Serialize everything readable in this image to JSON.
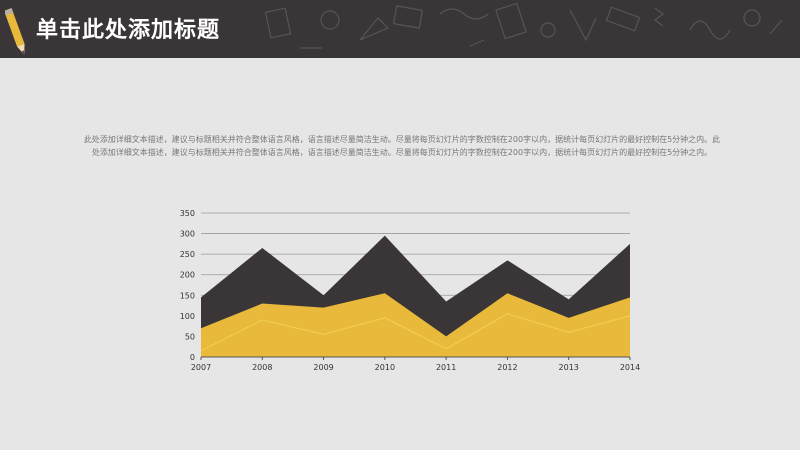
{
  "slide": {
    "title": "单击此处添加标题",
    "paragraph": "此处添加详细文本描述，建议与标题相关并符合整体语言风格，语言描述尽量简洁生动。尽量将每页幻灯片的字数控制在200字以内，据统计每页幻灯片的最好控制在5分钟之内。此处添加详细文本描述，建议与标题相关并符合整体语言风格，语言描述尽量简洁生动。尽量将每页幻灯片的字数控制在200字以内，据统计每页幻灯片的最好控制在5分钟之内。"
  },
  "colors": {
    "header_bg": "#3a3638",
    "slide_bg": "#e6e6e6",
    "dark_series": "#3a3638",
    "yellow_series": "#e8b93a",
    "line_series": "#f3cd4f",
    "grid": "#9a9a9a"
  },
  "chart_data": {
    "type": "area",
    "x": [
      "2007",
      "2008",
      "2009",
      "2010",
      "2011",
      "2012",
      "2013",
      "2014"
    ],
    "series": [
      {
        "values": [
          145,
          265,
          150,
          295,
          135,
          235,
          140,
          275
        ]
      },
      {
        "values": [
          70,
          130,
          120,
          155,
          50,
          155,
          95,
          145
        ]
      },
      {
        "values": [
          15,
          90,
          55,
          95,
          20,
          105,
          60,
          100
        ]
      }
    ],
    "y_ticks": [
      "0",
      "50",
      "100",
      "150",
      "200",
      "250",
      "300",
      "350"
    ],
    "ylim": [
      0,
      350
    ],
    "grid": true
  }
}
